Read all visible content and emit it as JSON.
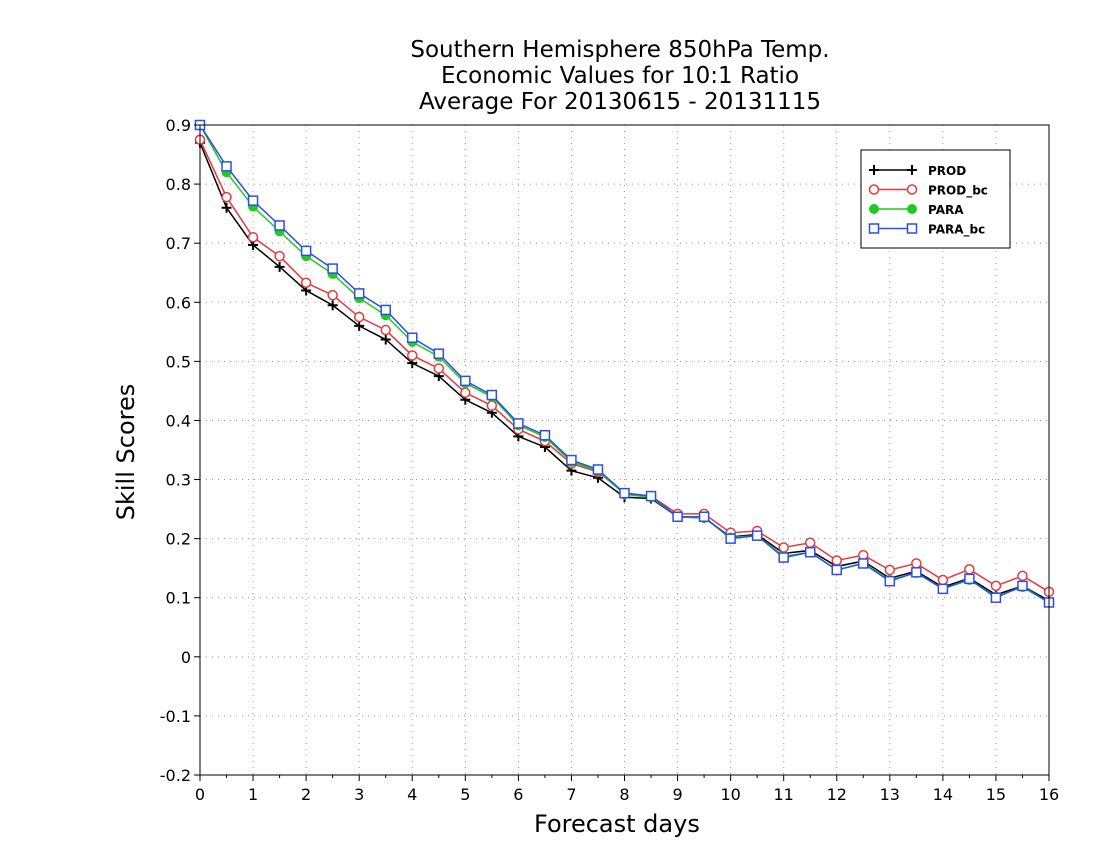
{
  "chart_data": {
    "type": "line",
    "title": [
      "Southern Hemisphere 850hPa Temp.",
      "Economic Values for 10:1 Ratio",
      "Average For 20130615 - 20131115"
    ],
    "xlabel": "Forecast days",
    "ylabel": "Skill Scores",
    "xlim": [
      0,
      16
    ],
    "ylim": [
      -0.2,
      0.9
    ],
    "xticks": [
      "0",
      "1",
      "2",
      "3",
      "4",
      "5",
      "6",
      "7",
      "8",
      "9",
      "10",
      "11",
      "12",
      "13",
      "14",
      "15",
      "16"
    ],
    "yticks": [
      "-0.2",
      "-0.1",
      "0",
      "0.1",
      "0.2",
      "0.3",
      "0.4",
      "0.5",
      "0.6",
      "0.7",
      "0.8",
      "0.9"
    ],
    "grid": true,
    "legend_position": "top-right",
    "x": [
      0,
      0.5,
      1,
      1.5,
      2,
      2.5,
      3,
      3.5,
      4,
      4.5,
      5,
      5.5,
      6,
      6.5,
      7,
      7.5,
      8,
      8.5,
      9,
      9.5,
      10,
      10.5,
      11,
      11.5,
      12,
      12.5,
      13,
      13.5,
      14,
      14.5,
      15,
      15.5,
      16
    ],
    "series": [
      {
        "name": "PROD",
        "color": "#000000",
        "marker": "plus",
        "values": [
          0.87,
          0.76,
          0.697,
          0.66,
          0.62,
          0.595,
          0.56,
          0.537,
          0.497,
          0.475,
          0.435,
          0.413,
          0.373,
          0.355,
          0.315,
          0.303,
          0.27,
          0.268,
          0.237,
          0.235,
          0.203,
          0.207,
          0.175,
          0.18,
          0.153,
          0.162,
          0.133,
          0.145,
          0.118,
          0.133,
          0.105,
          0.12,
          0.095
        ]
      },
      {
        "name": "PROD_bc",
        "color": "#e8393b",
        "marker": "open-circle",
        "values": [
          0.875,
          0.778,
          0.71,
          0.678,
          0.633,
          0.612,
          0.575,
          0.553,
          0.51,
          0.488,
          0.447,
          0.425,
          0.385,
          0.365,
          0.327,
          0.313,
          0.277,
          0.272,
          0.242,
          0.242,
          0.21,
          0.213,
          0.185,
          0.193,
          0.163,
          0.172,
          0.147,
          0.158,
          0.13,
          0.148,
          0.12,
          0.137,
          0.11
        ]
      },
      {
        "name": "PARA",
        "color": "#1fcc1f",
        "marker": "filled-circle",
        "values": [
          0.9,
          0.82,
          0.762,
          0.72,
          0.678,
          0.648,
          0.607,
          0.578,
          0.533,
          0.508,
          0.463,
          0.44,
          0.392,
          0.372,
          0.33,
          0.315,
          0.275,
          0.27,
          0.237,
          0.235,
          0.202,
          0.205,
          0.17,
          0.177,
          0.147,
          0.158,
          0.13,
          0.142,
          0.115,
          0.13,
          0.102,
          0.118,
          0.092
        ]
      },
      {
        "name": "PARA_bc",
        "color": "#2a4fe6",
        "marker": "open-square",
        "values": [
          0.9,
          0.83,
          0.772,
          0.73,
          0.687,
          0.657,
          0.615,
          0.587,
          0.54,
          0.513,
          0.467,
          0.443,
          0.395,
          0.375,
          0.333,
          0.317,
          0.277,
          0.272,
          0.237,
          0.237,
          0.2,
          0.205,
          0.168,
          0.177,
          0.147,
          0.158,
          0.128,
          0.143,
          0.115,
          0.132,
          0.1,
          0.12,
          0.092
        ]
      }
    ]
  }
}
